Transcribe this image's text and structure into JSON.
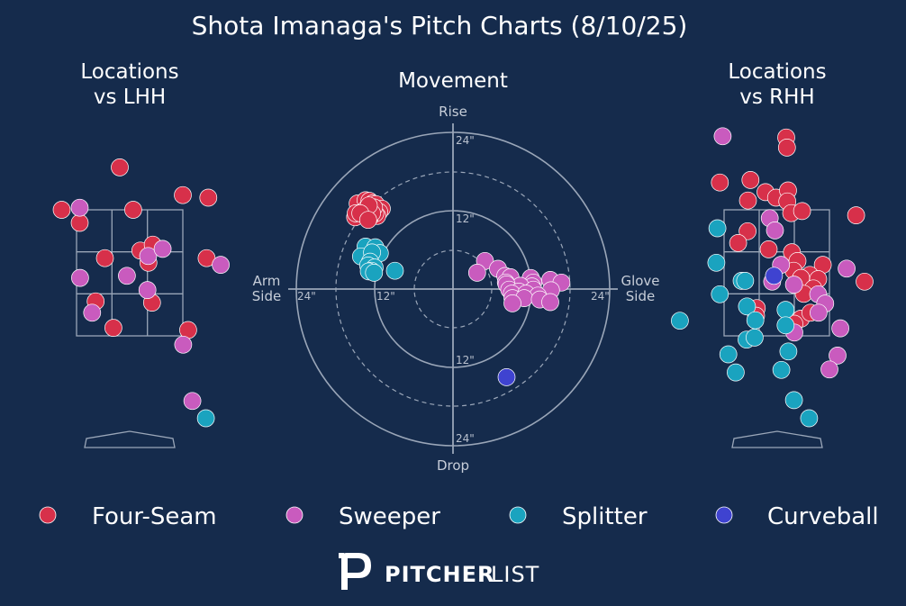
{
  "title": "Shota Imanaga's Pitch Charts (8/10/25)",
  "panels": {
    "lhh_title": [
      "Locations",
      "vs LHH"
    ],
    "movement_title": "Movement",
    "rhh_title": [
      "Locations",
      "vs RHH"
    ]
  },
  "movement_axes": {
    "top": "Rise",
    "bottom": "Drop",
    "left": [
      "Arm",
      "Side"
    ],
    "right": [
      "Glove",
      "Side"
    ],
    "ring_labels": [
      "24\"",
      "12\"",
      "12\"",
      "24\"",
      "24\"",
      "12\"",
      "12\"",
      "24\""
    ]
  },
  "legend": [
    {
      "name": "Four-Seam",
      "color": "#d7304a"
    },
    {
      "name": "Sweeper",
      "color": "#c95bbe"
    },
    {
      "name": "Splitter",
      "color": "#1aa3bf"
    },
    {
      "name": "Curveball",
      "color": "#3f43d0"
    }
  ],
  "brand": {
    "part1": "PITCHER",
    "part2": "LIST"
  },
  "chart_data": [
    {
      "type": "scatter",
      "title": "Locations vs LHH",
      "units": "strike-zone grid cells (x: 0-3 left to right, y: 0-3 top to bottom)",
      "points": [
        {
          "pitch": "Four-Seam",
          "x": 1.22,
          "y": -1.01
        },
        {
          "pitch": "Four-Seam",
          "x": -0.42,
          "y": 0.0
        },
        {
          "pitch": "Four-Seam",
          "x": 0.09,
          "y": 0.31
        },
        {
          "pitch": "Four-Seam",
          "x": 1.6,
          "y": 0.0
        },
        {
          "pitch": "Four-Seam",
          "x": 3.0,
          "y": -0.35
        },
        {
          "pitch": "Four-Seam",
          "x": 3.72,
          "y": -0.29
        },
        {
          "pitch": "Four-Seam",
          "x": 0.8,
          "y": 1.15
        },
        {
          "pitch": "Four-Seam",
          "x": 1.8,
          "y": 0.97
        },
        {
          "pitch": "Four-Seam",
          "x": 2.15,
          "y": 0.83
        },
        {
          "pitch": "Four-Seam",
          "x": 2.03,
          "y": 1.26
        },
        {
          "pitch": "Four-Seam",
          "x": 3.67,
          "y": 1.15
        },
        {
          "pitch": "Four-Seam",
          "x": 0.54,
          "y": 2.18
        },
        {
          "pitch": "Four-Seam",
          "x": 2.13,
          "y": 2.21
        },
        {
          "pitch": "Four-Seam",
          "x": 1.04,
          "y": 2.81
        },
        {
          "pitch": "Four-Seam",
          "x": 3.15,
          "y": 2.86
        },
        {
          "pitch": "Sweeper",
          "x": 0.09,
          "y": -0.05
        },
        {
          "pitch": "Sweeper",
          "x": 0.1,
          "y": 1.62
        },
        {
          "pitch": "Sweeper",
          "x": 1.42,
          "y": 1.57
        },
        {
          "pitch": "Sweeper",
          "x": 2.02,
          "y": 1.1
        },
        {
          "pitch": "Sweeper",
          "x": 2.43,
          "y": 0.93
        },
        {
          "pitch": "Sweeper",
          "x": 4.07,
          "y": 1.31
        },
        {
          "pitch": "Sweeper",
          "x": 2.0,
          "y": 1.91
        },
        {
          "pitch": "Sweeper",
          "x": 0.44,
          "y": 2.45
        },
        {
          "pitch": "Sweeper",
          "x": 3.01,
          "y": 3.21
        },
        {
          "pitch": "Sweeper",
          "x": 3.27,
          "y": 4.55
        },
        {
          "pitch": "Splitter",
          "x": 3.65,
          "y": 4.96
        }
      ]
    },
    {
      "type": "scatter",
      "title": "Movement",
      "units": "inches (x: negative arm side, positive glove side; y: positive rise)",
      "points": [
        {
          "pitch": "Four-Seam",
          "x": -15.0,
          "y": 11.0
        },
        {
          "pitch": "Four-Seam",
          "x": -14.4,
          "y": 12.4
        },
        {
          "pitch": "Four-Seam",
          "x": -14.6,
          "y": 13.1
        },
        {
          "pitch": "Four-Seam",
          "x": -13.4,
          "y": 13.6
        },
        {
          "pitch": "Four-Seam",
          "x": -12.8,
          "y": 13.5
        },
        {
          "pitch": "Four-Seam",
          "x": -12.3,
          "y": 13.1
        },
        {
          "pitch": "Four-Seam",
          "x": -11.8,
          "y": 13.0
        },
        {
          "pitch": "Four-Seam",
          "x": -10.9,
          "y": 12.3
        },
        {
          "pitch": "Four-Seam",
          "x": -12.4,
          "y": 12.1
        },
        {
          "pitch": "Four-Seam",
          "x": -13.2,
          "y": 12.4
        },
        {
          "pitch": "Four-Seam",
          "x": -13.3,
          "y": 11.7
        },
        {
          "pitch": "Four-Seam",
          "x": -13.0,
          "y": 11.2
        },
        {
          "pitch": "Four-Seam",
          "x": -11.3,
          "y": 11.8
        },
        {
          "pitch": "Four-Seam",
          "x": -11.6,
          "y": 11.2
        },
        {
          "pitch": "Four-Seam",
          "x": -11.9,
          "y": 11.6
        },
        {
          "pitch": "Four-Seam",
          "x": -14.9,
          "y": 11.6
        },
        {
          "pitch": "Four-Seam",
          "x": -12.8,
          "y": 10.9
        },
        {
          "pitch": "Four-Seam",
          "x": -12.1,
          "y": 12.5
        },
        {
          "pitch": "Four-Seam",
          "x": -13.5,
          "y": 12.1
        },
        {
          "pitch": "Four-Seam",
          "x": -12.4,
          "y": 11.6
        },
        {
          "pitch": "Four-Seam",
          "x": -12.9,
          "y": 12.8
        },
        {
          "pitch": "Four-Seam",
          "x": -14.2,
          "y": 11.6
        },
        {
          "pitch": "Four-Seam",
          "x": -13.0,
          "y": 10.6
        },
        {
          "pitch": "Splitter",
          "x": -13.4,
          "y": 6.5
        },
        {
          "pitch": "Splitter",
          "x": -11.9,
          "y": 6.4
        },
        {
          "pitch": "Splitter",
          "x": -14.1,
          "y": 5.0
        },
        {
          "pitch": "Splitter",
          "x": -11.2,
          "y": 5.5
        },
        {
          "pitch": "Splitter",
          "x": -12.4,
          "y": 5.6
        },
        {
          "pitch": "Splitter",
          "x": -12.7,
          "y": 4.2
        },
        {
          "pitch": "Splitter",
          "x": -13.0,
          "y": 3.6
        },
        {
          "pitch": "Splitter",
          "x": -12.0,
          "y": 3.3
        },
        {
          "pitch": "Splitter",
          "x": -12.5,
          "y": 2.8
        },
        {
          "pitch": "Splitter",
          "x": -12.9,
          "y": 2.7
        },
        {
          "pitch": "Splitter",
          "x": -12.1,
          "y": 2.5
        },
        {
          "pitch": "Splitter",
          "x": -8.9,
          "y": 2.8
        },
        {
          "pitch": "Sweeper",
          "x": 4.9,
          "y": 4.3
        },
        {
          "pitch": "Sweeper",
          "x": 3.7,
          "y": 2.5
        },
        {
          "pitch": "Sweeper",
          "x": 6.9,
          "y": 3.1
        },
        {
          "pitch": "Sweeper",
          "x": 8.0,
          "y": 2.0
        },
        {
          "pitch": "Sweeper",
          "x": 8.8,
          "y": 1.8
        },
        {
          "pitch": "Sweeper",
          "x": 11.9,
          "y": 1.7
        },
        {
          "pitch": "Sweeper",
          "x": 14.9,
          "y": 1.4
        },
        {
          "pitch": "Sweeper",
          "x": 16.6,
          "y": 1.0
        },
        {
          "pitch": "Sweeper",
          "x": 8.1,
          "y": 1.0
        },
        {
          "pitch": "Sweeper",
          "x": 12.3,
          "y": 1.0
        },
        {
          "pitch": "Sweeper",
          "x": 12.1,
          "y": 0.4
        },
        {
          "pitch": "Sweeper",
          "x": 10.3,
          "y": 0.5
        },
        {
          "pitch": "Sweeper",
          "x": 8.2,
          "y": 0.7
        },
        {
          "pitch": "Sweeper",
          "x": 8.6,
          "y": -0.1
        },
        {
          "pitch": "Sweeper",
          "x": 10.1,
          "y": -0.4
        },
        {
          "pitch": "Sweeper",
          "x": 12.3,
          "y": -0.1
        },
        {
          "pitch": "Sweeper",
          "x": 15.0,
          "y": -0.2
        },
        {
          "pitch": "Sweeper",
          "x": 9.0,
          "y": -0.7
        },
        {
          "pitch": "Sweeper",
          "x": 11.2,
          "y": -0.7
        },
        {
          "pitch": "Sweeper",
          "x": 13.0,
          "y": -1.0
        },
        {
          "pitch": "Sweeper",
          "x": 9.1,
          "y": -1.4
        },
        {
          "pitch": "Sweeper",
          "x": 10.9,
          "y": -1.4
        },
        {
          "pitch": "Sweeper",
          "x": 13.3,
          "y": -1.6
        },
        {
          "pitch": "Sweeper",
          "x": 14.9,
          "y": -2.0
        },
        {
          "pitch": "Sweeper",
          "x": 9.1,
          "y": -2.2
        },
        {
          "pitch": "Curveball",
          "x": 8.2,
          "y": -13.5
        }
      ]
    },
    {
      "type": "scatter",
      "title": "Locations vs RHH",
      "units": "strike-zone grid cells (x: 0-3 left to right, y: 0-3 top to bottom)",
      "points": [
        {
          "pitch": "Sweeper",
          "x": -0.04,
          "y": -1.75
        },
        {
          "pitch": "Four-Seam",
          "x": 1.77,
          "y": -1.72
        },
        {
          "pitch": "Four-Seam",
          "x": 1.79,
          "y": -1.48
        },
        {
          "pitch": "Four-Seam",
          "x": -0.12,
          "y": -0.65
        },
        {
          "pitch": "Four-Seam",
          "x": 0.75,
          "y": -0.71
        },
        {
          "pitch": "Four-Seam",
          "x": 1.18,
          "y": -0.42
        },
        {
          "pitch": "Four-Seam",
          "x": 1.48,
          "y": -0.29
        },
        {
          "pitch": "Four-Seam",
          "x": 1.82,
          "y": -0.46
        },
        {
          "pitch": "Four-Seam",
          "x": 1.8,
          "y": -0.2
        },
        {
          "pitch": "Four-Seam",
          "x": 0.68,
          "y": -0.22
        },
        {
          "pitch": "Four-Seam",
          "x": 1.91,
          "y": 0.08
        },
        {
          "pitch": "Four-Seam",
          "x": 2.22,
          "y": 0.03
        },
        {
          "pitch": "Four-Seam",
          "x": 3.76,
          "y": 0.13
        },
        {
          "pitch": "Four-Seam",
          "x": 0.67,
          "y": 0.51
        },
        {
          "pitch": "Four-Seam",
          "x": 0.4,
          "y": 0.79
        },
        {
          "pitch": "Four-Seam",
          "x": 1.27,
          "y": 0.94
        },
        {
          "pitch": "Four-Seam",
          "x": 1.93,
          "y": 1.01
        },
        {
          "pitch": "Four-Seam",
          "x": 2.09,
          "y": 1.22
        },
        {
          "pitch": "Four-Seam",
          "x": 2.81,
          "y": 1.31
        },
        {
          "pitch": "Four-Seam",
          "x": 1.98,
          "y": 1.45
        },
        {
          "pitch": "Four-Seam",
          "x": 2.44,
          "y": 1.55
        },
        {
          "pitch": "Four-Seam",
          "x": 2.68,
          "y": 1.65
        },
        {
          "pitch": "Four-Seam",
          "x": 2.19,
          "y": 1.62
        },
        {
          "pitch": "Four-Seam",
          "x": 2.54,
          "y": 1.87
        },
        {
          "pitch": "Four-Seam",
          "x": 2.27,
          "y": 2.0
        },
        {
          "pitch": "Four-Seam",
          "x": 4.0,
          "y": 1.71
        },
        {
          "pitch": "Four-Seam",
          "x": 0.93,
          "y": 2.34
        },
        {
          "pitch": "Four-Seam",
          "x": 0.91,
          "y": 2.52
        },
        {
          "pitch": "Four-Seam",
          "x": 2.19,
          "y": 2.59
        },
        {
          "pitch": "Four-Seam",
          "x": 2.46,
          "y": 2.45
        },
        {
          "pitch": "Four-Seam",
          "x": 2.0,
          "y": 2.71
        },
        {
          "pitch": "Sweeper",
          "x": 1.3,
          "y": 0.2
        },
        {
          "pitch": "Sweeper",
          "x": 1.45,
          "y": 0.49
        },
        {
          "pitch": "Sweeper",
          "x": 1.62,
          "y": 1.31
        },
        {
          "pitch": "Sweeper",
          "x": 3.49,
          "y": 1.4
        },
        {
          "pitch": "Sweeper",
          "x": 1.37,
          "y": 1.71
        },
        {
          "pitch": "Sweeper",
          "x": 1.99,
          "y": 1.78
        },
        {
          "pitch": "Sweeper",
          "x": 2.68,
          "y": 2.01
        },
        {
          "pitch": "Sweeper",
          "x": 2.88,
          "y": 2.23
        },
        {
          "pitch": "Sweeper",
          "x": 2.69,
          "y": 2.45
        },
        {
          "pitch": "Sweeper",
          "x": 3.31,
          "y": 2.82
        },
        {
          "pitch": "Sweeper",
          "x": 2.0,
          "y": 2.92
        },
        {
          "pitch": "Sweeper",
          "x": 3.23,
          "y": 3.47
        },
        {
          "pitch": "Sweeper",
          "x": 3.0,
          "y": 3.8
        },
        {
          "pitch": "Curveball",
          "x": 1.42,
          "y": 1.57
        },
        {
          "pitch": "Splitter",
          "x": -0.19,
          "y": 0.44
        },
        {
          "pitch": "Splitter",
          "x": -0.22,
          "y": 1.26
        },
        {
          "pitch": "Splitter",
          "x": 0.5,
          "y": 1.69
        },
        {
          "pitch": "Splitter",
          "x": 0.6,
          "y": 1.69
        },
        {
          "pitch": "Splitter",
          "x": -0.12,
          "y": 2.01
        },
        {
          "pitch": "Splitter",
          "x": 0.65,
          "y": 2.3
        },
        {
          "pitch": "Splitter",
          "x": 1.75,
          "y": 2.38
        },
        {
          "pitch": "Splitter",
          "x": 0.89,
          "y": 2.63
        },
        {
          "pitch": "Splitter",
          "x": 1.75,
          "y": 2.75
        },
        {
          "pitch": "Splitter",
          "x": 0.64,
          "y": 3.09
        },
        {
          "pitch": "Splitter",
          "x": 0.87,
          "y": 3.04
        },
        {
          "pitch": "Splitter",
          "x": 0.12,
          "y": 3.44
        },
        {
          "pitch": "Splitter",
          "x": 1.83,
          "y": 3.37
        },
        {
          "pitch": "Splitter",
          "x": 0.33,
          "y": 3.87
        },
        {
          "pitch": "Splitter",
          "x": 1.63,
          "y": 3.81
        },
        {
          "pitch": "Splitter",
          "x": 1.99,
          "y": 4.53
        },
        {
          "pitch": "Splitter",
          "x": 2.42,
          "y": 4.96
        },
        {
          "pitch": "Splitter",
          "x": -1.26,
          "y": 2.64
        }
      ]
    }
  ]
}
